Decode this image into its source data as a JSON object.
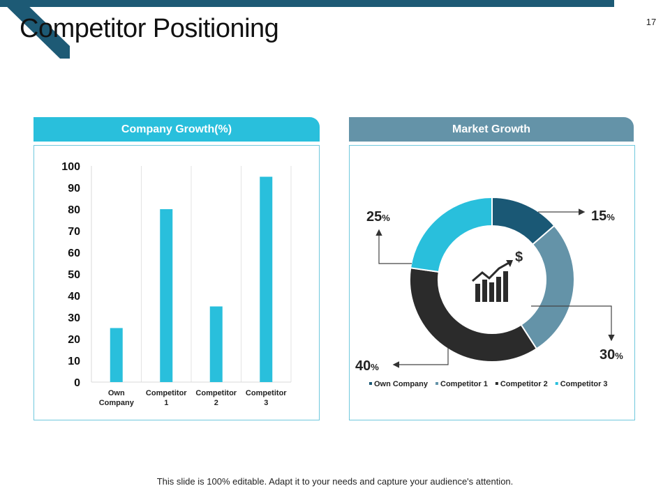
{
  "slide": {
    "title": "Competitor Positioning",
    "page_number": "17",
    "footer": "This slide is 100% editable. Adapt it to your needs and capture your audience's attention.",
    "accent_color": "#1d5a75"
  },
  "chart_data": [
    {
      "type": "bar",
      "title": "Company Growth(%)",
      "categories": [
        "Own Company",
        "Competitor 1",
        "Competitor 2",
        "Competitor 3"
      ],
      "category_lines": [
        [
          "Own",
          "Company"
        ],
        [
          "Competitor",
          "1"
        ],
        [
          "Competitor",
          "2"
        ],
        [
          "Competitor",
          "3"
        ]
      ],
      "values": [
        25,
        80,
        35,
        95
      ],
      "ylim": [
        0,
        100
      ],
      "yticks": [
        0,
        10,
        20,
        30,
        40,
        50,
        60,
        70,
        80,
        90,
        100
      ],
      "color": "#29bfdc",
      "grid": "vertical"
    },
    {
      "type": "pie",
      "subtype": "donut",
      "title": "Market Growth",
      "categories": [
        "Own Company",
        "Competitor 1",
        "Competitor 2",
        "Competitor 3"
      ],
      "values": [
        15,
        30,
        40,
        25
      ],
      "labels": [
        "15%",
        "30%",
        "40%",
        "25%"
      ],
      "colors": [
        "#1a5875",
        "#6493a8",
        "#2b2b2b",
        "#29bfdc"
      ],
      "legend": "bottom",
      "center_icon": "growth-chart-dollar-icon"
    }
  ]
}
